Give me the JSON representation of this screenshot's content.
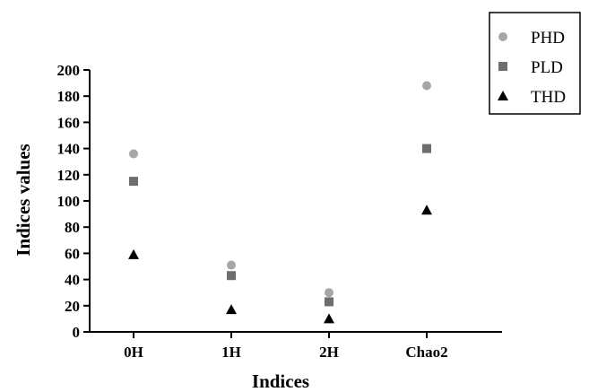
{
  "chart_data": {
    "type": "scatter",
    "categories": [
      "0H",
      "1H",
      "2H",
      "Chao2"
    ],
    "series": [
      {
        "name": "PHD",
        "marker": "circle",
        "color": "#a6a6a6",
        "values": [
          136,
          51,
          30,
          188
        ]
      },
      {
        "name": "PLD",
        "marker": "square",
        "color": "#6e6e6e",
        "values": [
          115,
          43,
          23,
          140
        ]
      },
      {
        "name": "THD",
        "marker": "triangle",
        "color": "#000000",
        "values": [
          59,
          17,
          10,
          93
        ]
      }
    ],
    "xlabel": "Indices",
    "ylabel": "Indices values",
    "ylim": [
      0,
      200
    ],
    "yticks": [
      0,
      20,
      40,
      60,
      80,
      100,
      120,
      140,
      160,
      180,
      200
    ],
    "grid": false,
    "legend_position": "top-right"
  }
}
